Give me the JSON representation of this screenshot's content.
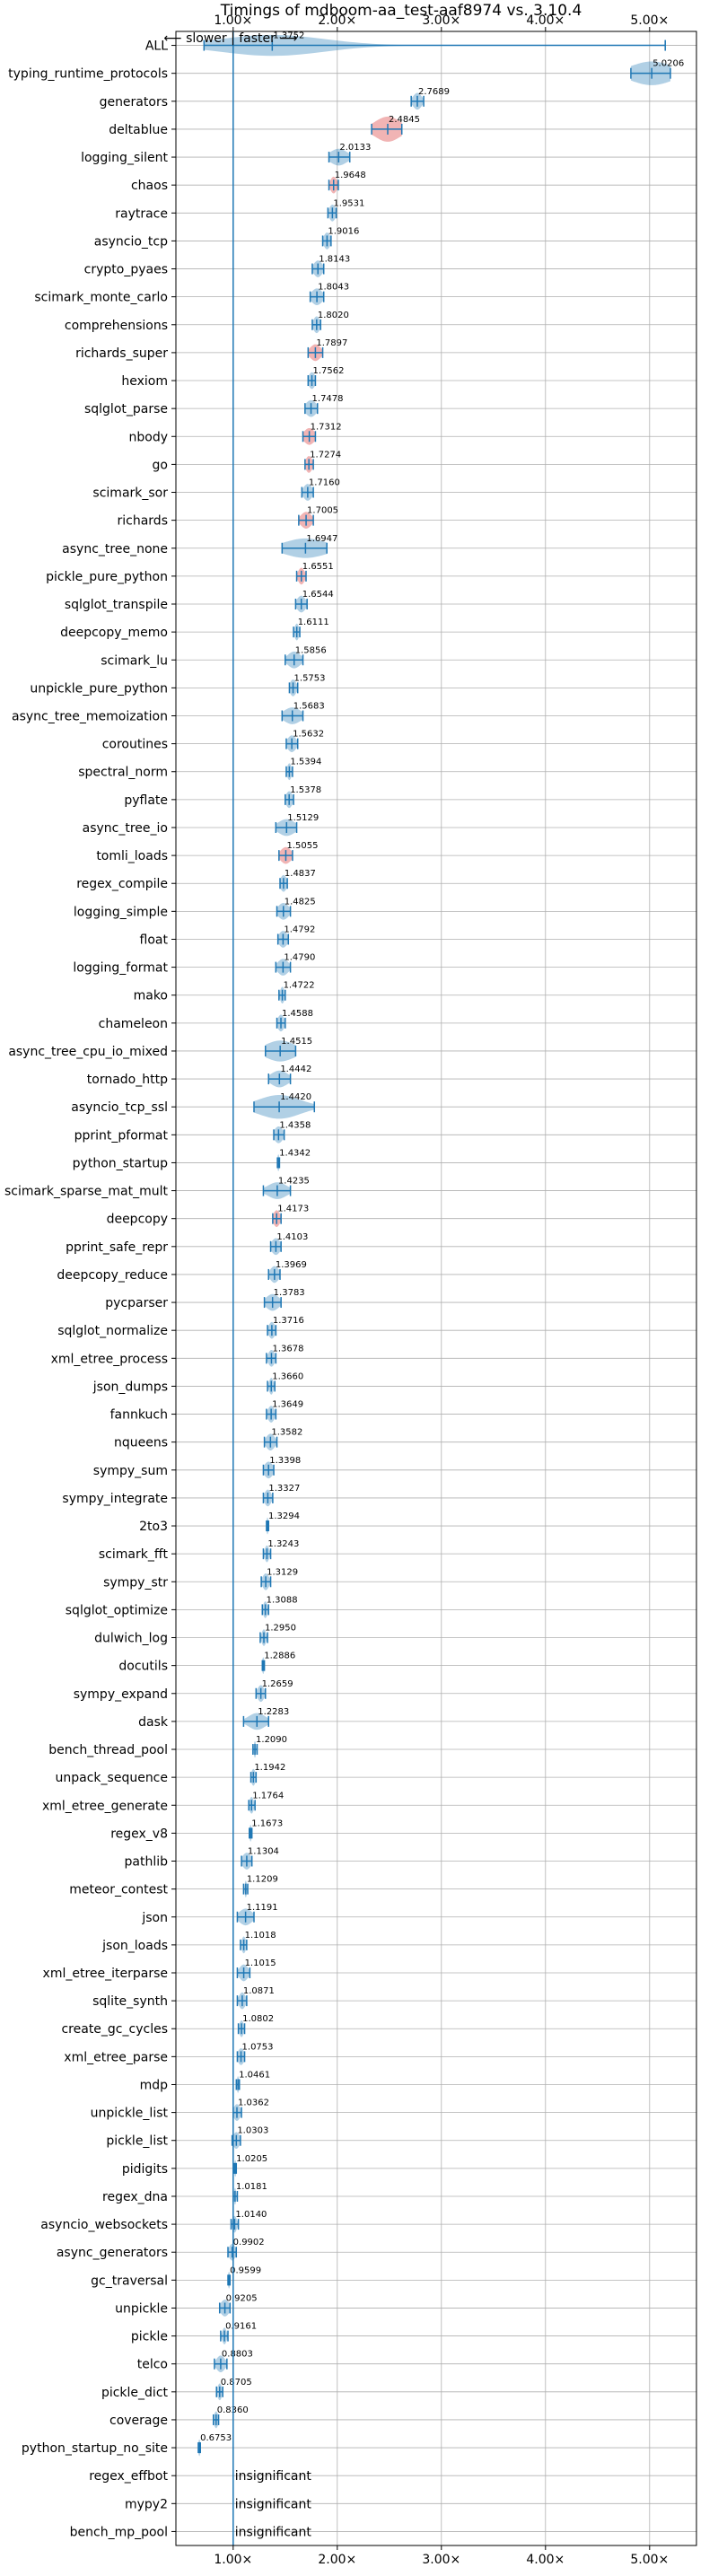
{
  "chart_data": {
    "type": "violin",
    "title": "Timings of mdboom-aa_test-aaf8974 vs. 3.10.4",
    "direction_label": "⟵ slower | faster ⟶",
    "x_ticks": [
      {
        "value": 1.0,
        "label": "1.00×"
      },
      {
        "value": 2.0,
        "label": "2.00×"
      },
      {
        "value": 3.0,
        "label": "3.00×"
      },
      {
        "value": 4.0,
        "label": "4.00×"
      },
      {
        "value": 5.0,
        "label": "5.00×"
      }
    ],
    "xlim": [
      0.45,
      5.45
    ],
    "baseline": 1.0,
    "colors": {
      "faster": "#1f77b4",
      "slower": "#d62728",
      "grid": "#b0b0b0"
    },
    "benchmarks": [
      {
        "name": "ALL",
        "value": 1.3752,
        "label": "1.3752",
        "min": 0.72,
        "max": 5.15,
        "spread": 0.5,
        "width": 0.75,
        "color": "faster"
      },
      {
        "name": "typing_runtime_protocols",
        "value": 5.0206,
        "label": "5.0206",
        "min": 4.82,
        "max": 5.2,
        "spread": 0.2,
        "width": 0.85,
        "color": "faster"
      },
      {
        "name": "generators",
        "value": 2.7689,
        "label": "2.7689",
        "min": 2.71,
        "max": 2.83,
        "spread": 0.04,
        "width": 0.6,
        "color": "faster"
      },
      {
        "name": "deltablue",
        "value": 2.4845,
        "label": "2.4845",
        "min": 2.33,
        "max": 2.62,
        "spread": 0.12,
        "width": 0.9,
        "color": "slower"
      },
      {
        "name": "logging_silent",
        "value": 2.0133,
        "label": "2.0133",
        "min": 1.92,
        "max": 2.12,
        "spread": 0.08,
        "width": 0.6,
        "color": "faster"
      },
      {
        "name": "chaos",
        "value": 1.9648,
        "label": "1.9648",
        "min": 1.92,
        "max": 2.01,
        "spread": 0.03,
        "width": 0.6,
        "color": "slower"
      },
      {
        "name": "raytrace",
        "value": 1.9531,
        "label": "1.9531",
        "min": 1.91,
        "max": 1.99,
        "spread": 0.03,
        "width": 0.6,
        "color": "faster"
      },
      {
        "name": "asyncio_tcp",
        "value": 1.9016,
        "label": "1.9016",
        "min": 1.86,
        "max": 1.94,
        "spread": 0.03,
        "width": 0.6,
        "color": "faster"
      },
      {
        "name": "crypto_pyaes",
        "value": 1.8143,
        "label": "1.8143",
        "min": 1.76,
        "max": 1.87,
        "spread": 0.04,
        "width": 0.6,
        "color": "faster"
      },
      {
        "name": "scimark_monte_carlo",
        "value": 1.8043,
        "label": "1.8043",
        "min": 1.74,
        "max": 1.87,
        "spread": 0.05,
        "width": 0.6,
        "color": "faster"
      },
      {
        "name": "comprehensions",
        "value": 1.802,
        "label": "1.8020",
        "min": 1.76,
        "max": 1.84,
        "spread": 0.03,
        "width": 0.6,
        "color": "faster"
      },
      {
        "name": "richards_super",
        "value": 1.7897,
        "label": "1.7897",
        "min": 1.72,
        "max": 1.86,
        "spread": 0.05,
        "width": 0.6,
        "color": "slower"
      },
      {
        "name": "hexiom",
        "value": 1.7562,
        "label": "1.7562",
        "min": 1.72,
        "max": 1.79,
        "spread": 0.03,
        "width": 0.6,
        "color": "faster"
      },
      {
        "name": "sqlglot_parse",
        "value": 1.7478,
        "label": "1.7478",
        "min": 1.69,
        "max": 1.81,
        "spread": 0.05,
        "width": 0.6,
        "color": "faster"
      },
      {
        "name": "nbody",
        "value": 1.7312,
        "label": "1.7312",
        "min": 1.67,
        "max": 1.79,
        "spread": 0.05,
        "width": 0.6,
        "color": "slower"
      },
      {
        "name": "go",
        "value": 1.7274,
        "label": "1.7274",
        "min": 1.69,
        "max": 1.77,
        "spread": 0.03,
        "width": 0.6,
        "color": "slower"
      },
      {
        "name": "scimark_sor",
        "value": 1.716,
        "label": "1.7160",
        "min": 1.66,
        "max": 1.77,
        "spread": 0.04,
        "width": 0.6,
        "color": "faster"
      },
      {
        "name": "richards",
        "value": 1.7005,
        "label": "1.7005",
        "min": 1.63,
        "max": 1.77,
        "spread": 0.05,
        "width": 0.6,
        "color": "slower"
      },
      {
        "name": "async_tree_none",
        "value": 1.6947,
        "label": "1.6947",
        "min": 1.47,
        "max": 1.9,
        "spread": 0.2,
        "width": 0.7,
        "color": "faster"
      },
      {
        "name": "pickle_pure_python",
        "value": 1.6551,
        "label": "1.6551",
        "min": 1.61,
        "max": 1.7,
        "spread": 0.03,
        "width": 0.6,
        "color": "slower"
      },
      {
        "name": "sqlglot_transpile",
        "value": 1.6544,
        "label": "1.6544",
        "min": 1.6,
        "max": 1.71,
        "spread": 0.04,
        "width": 0.6,
        "color": "faster"
      },
      {
        "name": "deepcopy_memo",
        "value": 1.6111,
        "label": "1.6111",
        "min": 1.58,
        "max": 1.64,
        "spread": 0.02,
        "width": 0.6,
        "color": "faster"
      },
      {
        "name": "scimark_lu",
        "value": 1.5856,
        "label": "1.5856",
        "min": 1.5,
        "max": 1.67,
        "spread": 0.06,
        "width": 0.6,
        "color": "faster"
      },
      {
        "name": "unpickle_pure_python",
        "value": 1.5753,
        "label": "1.5753",
        "min": 1.54,
        "max": 1.62,
        "spread": 0.03,
        "width": 0.6,
        "color": "faster"
      },
      {
        "name": "async_tree_memoization",
        "value": 1.5683,
        "label": "1.5683",
        "min": 1.47,
        "max": 1.67,
        "spread": 0.08,
        "width": 0.6,
        "color": "faster"
      },
      {
        "name": "coroutines",
        "value": 1.5632,
        "label": "1.5632",
        "min": 1.51,
        "max": 1.62,
        "spread": 0.04,
        "width": 0.6,
        "color": "faster"
      },
      {
        "name": "spectral_norm",
        "value": 1.5394,
        "label": "1.5394",
        "min": 1.51,
        "max": 1.57,
        "spread": 0.02,
        "width": 0.6,
        "color": "faster"
      },
      {
        "name": "pyflate",
        "value": 1.5378,
        "label": "1.5378",
        "min": 1.5,
        "max": 1.58,
        "spread": 0.03,
        "width": 0.6,
        "color": "faster"
      },
      {
        "name": "async_tree_io",
        "value": 1.5129,
        "label": "1.5129",
        "min": 1.41,
        "max": 1.61,
        "spread": 0.08,
        "width": 0.6,
        "color": "faster"
      },
      {
        "name": "tomli_loads",
        "value": 1.5055,
        "label": "1.5055",
        "min": 1.44,
        "max": 1.57,
        "spread": 0.05,
        "width": 0.6,
        "color": "slower"
      },
      {
        "name": "regex_compile",
        "value": 1.4837,
        "label": "1.4837",
        "min": 1.45,
        "max": 1.52,
        "spread": 0.03,
        "width": 0.6,
        "color": "faster"
      },
      {
        "name": "logging_simple",
        "value": 1.4825,
        "label": "1.4825",
        "min": 1.42,
        "max": 1.55,
        "spread": 0.05,
        "width": 0.6,
        "color": "faster"
      },
      {
        "name": "float",
        "value": 1.4792,
        "label": "1.4792",
        "min": 1.43,
        "max": 1.53,
        "spread": 0.04,
        "width": 0.6,
        "color": "faster"
      },
      {
        "name": "logging_format",
        "value": 1.479,
        "label": "1.4790",
        "min": 1.41,
        "max": 1.55,
        "spread": 0.05,
        "width": 0.6,
        "color": "faster"
      },
      {
        "name": "mako",
        "value": 1.4722,
        "label": "1.4722",
        "min": 1.44,
        "max": 1.5,
        "spread": 0.02,
        "width": 0.6,
        "color": "faster"
      },
      {
        "name": "chameleon",
        "value": 1.4588,
        "label": "1.4588",
        "min": 1.42,
        "max": 1.5,
        "spread": 0.03,
        "width": 0.6,
        "color": "faster"
      },
      {
        "name": "async_tree_cpu_io_mixed",
        "value": 1.4515,
        "label": "1.4515",
        "min": 1.31,
        "max": 1.6,
        "spread": 0.14,
        "width": 0.75,
        "color": "faster"
      },
      {
        "name": "tornado_http",
        "value": 1.4442,
        "label": "1.4442",
        "min": 1.34,
        "max": 1.55,
        "spread": 0.08,
        "width": 0.6,
        "color": "faster"
      },
      {
        "name": "asyncio_tcp_ssl",
        "value": 1.442,
        "label": "1.4420",
        "min": 1.2,
        "max": 1.78,
        "spread": 0.2,
        "width": 0.85,
        "color": "faster"
      },
      {
        "name": "pprint_pformat",
        "value": 1.4358,
        "label": "1.4358",
        "min": 1.39,
        "max": 1.49,
        "spread": 0.04,
        "width": 0.6,
        "color": "faster"
      },
      {
        "name": "python_startup",
        "value": 1.4342,
        "label": "1.4342",
        "min": 1.425,
        "max": 1.445,
        "spread": 0.01,
        "width": 0.6,
        "color": "faster"
      },
      {
        "name": "scimark_sparse_mat_mult",
        "value": 1.4235,
        "label": "1.4235",
        "min": 1.29,
        "max": 1.55,
        "spread": 0.09,
        "width": 0.6,
        "color": "faster"
      },
      {
        "name": "deepcopy",
        "value": 1.4173,
        "label": "1.4173",
        "min": 1.38,
        "max": 1.46,
        "spread": 0.03,
        "width": 0.6,
        "color": "slower"
      },
      {
        "name": "pprint_safe_repr",
        "value": 1.4103,
        "label": "1.4103",
        "min": 1.36,
        "max": 1.46,
        "spread": 0.04,
        "width": 0.6,
        "color": "faster"
      },
      {
        "name": "deepcopy_reduce",
        "value": 1.3969,
        "label": "1.3969",
        "min": 1.34,
        "max": 1.45,
        "spread": 0.04,
        "width": 0.6,
        "color": "faster"
      },
      {
        "name": "pycparser",
        "value": 1.3783,
        "label": "1.3783",
        "min": 1.3,
        "max": 1.46,
        "spread": 0.06,
        "width": 0.6,
        "color": "faster"
      },
      {
        "name": "sqlglot_normalize",
        "value": 1.3716,
        "label": "1.3716",
        "min": 1.33,
        "max": 1.41,
        "spread": 0.03,
        "width": 0.6,
        "color": "faster"
      },
      {
        "name": "xml_etree_process",
        "value": 1.3678,
        "label": "1.3678",
        "min": 1.32,
        "max": 1.41,
        "spread": 0.03,
        "width": 0.6,
        "color": "faster"
      },
      {
        "name": "json_dumps",
        "value": 1.366,
        "label": "1.3660",
        "min": 1.33,
        "max": 1.4,
        "spread": 0.02,
        "width": 0.6,
        "color": "faster"
      },
      {
        "name": "fannkuch",
        "value": 1.3649,
        "label": "1.3649",
        "min": 1.32,
        "max": 1.41,
        "spread": 0.03,
        "width": 0.6,
        "color": "faster"
      },
      {
        "name": "nqueens",
        "value": 1.3582,
        "label": "1.3582",
        "min": 1.3,
        "max": 1.42,
        "spread": 0.04,
        "width": 0.6,
        "color": "faster"
      },
      {
        "name": "sympy_sum",
        "value": 1.3398,
        "label": "1.3398",
        "min": 1.29,
        "max": 1.39,
        "spread": 0.04,
        "width": 0.6,
        "color": "faster"
      },
      {
        "name": "sympy_integrate",
        "value": 1.3327,
        "label": "1.3327",
        "min": 1.29,
        "max": 1.38,
        "spread": 0.03,
        "width": 0.6,
        "color": "faster"
      },
      {
        "name": "2to3",
        "value": 1.3294,
        "label": "1.3294",
        "min": 1.32,
        "max": 1.34,
        "spread": 0.01,
        "width": 0.6,
        "color": "faster"
      },
      {
        "name": "scimark_fft",
        "value": 1.3243,
        "label": "1.3243",
        "min": 1.29,
        "max": 1.36,
        "spread": 0.02,
        "width": 0.6,
        "color": "faster"
      },
      {
        "name": "sympy_str",
        "value": 1.3129,
        "label": "1.3129",
        "min": 1.27,
        "max": 1.36,
        "spread": 0.03,
        "width": 0.6,
        "color": "faster"
      },
      {
        "name": "sqlglot_optimize",
        "value": 1.3088,
        "label": "1.3088",
        "min": 1.28,
        "max": 1.34,
        "spread": 0.02,
        "width": 0.6,
        "color": "faster"
      },
      {
        "name": "dulwich_log",
        "value": 1.295,
        "label": "1.2950",
        "min": 1.26,
        "max": 1.33,
        "spread": 0.02,
        "width": 0.6,
        "color": "faster"
      },
      {
        "name": "docutils",
        "value": 1.2886,
        "label": "1.2886",
        "min": 1.28,
        "max": 1.3,
        "spread": 0.01,
        "width": 0.6,
        "color": "faster"
      },
      {
        "name": "sympy_expand",
        "value": 1.2659,
        "label": "1.2659",
        "min": 1.22,
        "max": 1.31,
        "spread": 0.03,
        "width": 0.6,
        "color": "faster"
      },
      {
        "name": "dask",
        "value": 1.2283,
        "label": "1.2283",
        "min": 1.1,
        "max": 1.34,
        "spread": 0.08,
        "width": 0.6,
        "color": "faster"
      },
      {
        "name": "bench_thread_pool",
        "value": 1.209,
        "label": "1.2090",
        "min": 1.19,
        "max": 1.23,
        "spread": 0.01,
        "width": 0.6,
        "color": "faster"
      },
      {
        "name": "unpack_sequence",
        "value": 1.1942,
        "label": "1.1942",
        "min": 1.17,
        "max": 1.22,
        "spread": 0.02,
        "width": 0.6,
        "color": "faster"
      },
      {
        "name": "xml_etree_generate",
        "value": 1.1764,
        "label": "1.1764",
        "min": 1.15,
        "max": 1.21,
        "spread": 0.02,
        "width": 0.6,
        "color": "faster"
      },
      {
        "name": "regex_v8",
        "value": 1.1673,
        "label": "1.1673",
        "min": 1.155,
        "max": 1.18,
        "spread": 0.01,
        "width": 0.6,
        "color": "faster"
      },
      {
        "name": "pathlib",
        "value": 1.1304,
        "label": "1.1304",
        "min": 1.08,
        "max": 1.18,
        "spread": 0.04,
        "width": 0.6,
        "color": "faster"
      },
      {
        "name": "meteor_contest",
        "value": 1.1209,
        "label": "1.1209",
        "min": 1.1,
        "max": 1.14,
        "spread": 0.01,
        "width": 0.6,
        "color": "faster"
      },
      {
        "name": "json",
        "value": 1.1191,
        "label": "1.1191",
        "min": 1.04,
        "max": 1.2,
        "spread": 0.06,
        "width": 0.6,
        "color": "faster"
      },
      {
        "name": "json_loads",
        "value": 1.1018,
        "label": "1.1018",
        "min": 1.07,
        "max": 1.13,
        "spread": 0.02,
        "width": 0.6,
        "color": "faster"
      },
      {
        "name": "xml_etree_iterparse",
        "value": 1.1015,
        "label": "1.1015",
        "min": 1.04,
        "max": 1.16,
        "spread": 0.04,
        "width": 0.6,
        "color": "faster"
      },
      {
        "name": "sqlite_synth",
        "value": 1.0871,
        "label": "1.0871",
        "min": 1.04,
        "max": 1.13,
        "spread": 0.03,
        "width": 0.6,
        "color": "faster"
      },
      {
        "name": "create_gc_cycles",
        "value": 1.0802,
        "label": "1.0802",
        "min": 1.05,
        "max": 1.11,
        "spread": 0.02,
        "width": 0.6,
        "color": "faster"
      },
      {
        "name": "xml_etree_parse",
        "value": 1.0753,
        "label": "1.0753",
        "min": 1.04,
        "max": 1.11,
        "spread": 0.03,
        "width": 0.6,
        "color": "faster"
      },
      {
        "name": "mdp",
        "value": 1.0461,
        "label": "1.0461",
        "min": 1.03,
        "max": 1.06,
        "spread": 0.01,
        "width": 0.6,
        "color": "faster"
      },
      {
        "name": "unpickle_list",
        "value": 1.0362,
        "label": "1.0362",
        "min": 1.0,
        "max": 1.08,
        "spread": 0.03,
        "width": 0.6,
        "color": "faster"
      },
      {
        "name": "pickle_list",
        "value": 1.0303,
        "label": "1.0303",
        "min": 0.99,
        "max": 1.07,
        "spread": 0.03,
        "width": 0.6,
        "color": "faster"
      },
      {
        "name": "pidigits",
        "value": 1.0205,
        "label": "1.0205",
        "min": 1.01,
        "max": 1.03,
        "spread": 0.01,
        "width": 0.6,
        "color": "faster"
      },
      {
        "name": "regex_dna",
        "value": 1.0181,
        "label": "1.0181",
        "min": 1.0,
        "max": 1.04,
        "spread": 0.01,
        "width": 0.6,
        "color": "faster"
      },
      {
        "name": "asyncio_websockets",
        "value": 1.014,
        "label": "1.0140",
        "min": 0.98,
        "max": 1.05,
        "spread": 0.02,
        "width": 0.6,
        "color": "faster"
      },
      {
        "name": "async_generators",
        "value": 0.9902,
        "label": "0.9902",
        "min": 0.95,
        "max": 1.03,
        "spread": 0.03,
        "width": 0.6,
        "color": "faster"
      },
      {
        "name": "gc_traversal",
        "value": 0.9599,
        "label": "0.9599",
        "min": 0.95,
        "max": 0.97,
        "spread": 0.01,
        "width": 0.6,
        "color": "faster"
      },
      {
        "name": "unpickle",
        "value": 0.9205,
        "label": "0.9205",
        "min": 0.87,
        "max": 0.97,
        "spread": 0.04,
        "width": 0.6,
        "color": "faster"
      },
      {
        "name": "pickle",
        "value": 0.9161,
        "label": "0.9161",
        "min": 0.88,
        "max": 0.95,
        "spread": 0.02,
        "width": 0.6,
        "color": "faster"
      },
      {
        "name": "telco",
        "value": 0.8803,
        "label": "0.8803",
        "min": 0.82,
        "max": 0.94,
        "spread": 0.04,
        "width": 0.6,
        "color": "faster"
      },
      {
        "name": "pickle_dict",
        "value": 0.8705,
        "label": "0.8705",
        "min": 0.84,
        "max": 0.9,
        "spread": 0.02,
        "width": 0.6,
        "color": "faster"
      },
      {
        "name": "coverage",
        "value": 0.836,
        "label": "0.8360",
        "min": 0.81,
        "max": 0.86,
        "spread": 0.02,
        "width": 0.6,
        "color": "faster"
      },
      {
        "name": "python_startup_no_site",
        "value": 0.6753,
        "label": "0.6753",
        "min": 0.665,
        "max": 0.685,
        "spread": 0.01,
        "width": 0.6,
        "color": "faster"
      },
      {
        "name": "regex_effbot",
        "value": null,
        "label": "insignificant",
        "color": "faster"
      },
      {
        "name": "mypy2",
        "value": null,
        "label": "insignificant",
        "color": "faster"
      },
      {
        "name": "bench_mp_pool",
        "value": null,
        "label": "insignificant",
        "color": "faster"
      }
    ]
  }
}
